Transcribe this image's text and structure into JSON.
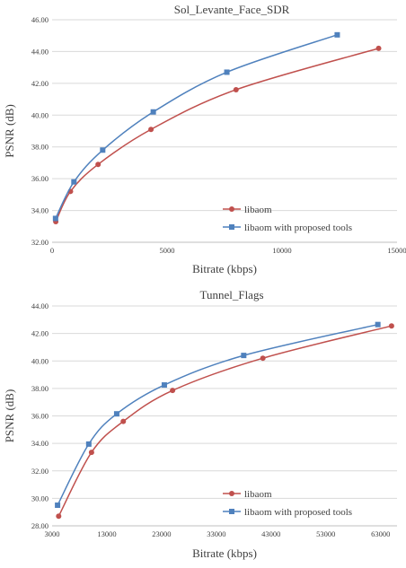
{
  "chart_data": [
    {
      "type": "line",
      "title": "Sol_Levante_Face_SDR",
      "xlabel": "Bitrate (kbps)",
      "ylabel": "PSNR (dB)",
      "xlim": [
        0,
        15000
      ],
      "ylim": [
        32,
        46
      ],
      "x_ticks": [
        0,
        5000,
        10000,
        15000
      ],
      "x_tick_labels": [
        "0",
        "5000",
        "10000",
        "15000"
      ],
      "y_ticks": [
        32,
        34,
        36,
        38,
        40,
        42,
        44,
        46
      ],
      "y_tick_labels": [
        "32.00",
        "34.00",
        "36.00",
        "38.00",
        "40.00",
        "42.00",
        "44.00",
        "46.00"
      ],
      "grid": "horizontal",
      "legend_position": "bottom-right",
      "series": [
        {
          "name": "libaom",
          "color": "#c0504d",
          "marker": "circle",
          "points": [
            [
              160,
              33.3
            ],
            [
              800,
              35.2
            ],
            [
              2000,
              36.9
            ],
            [
              4300,
              39.1
            ],
            [
              8000,
              41.6
            ],
            [
              14200,
              44.2
            ]
          ]
        },
        {
          "name": "libaom with proposed tools",
          "color": "#4f81bd",
          "marker": "square",
          "points": [
            [
              150,
              33.5
            ],
            [
              950,
              35.8
            ],
            [
              2200,
              37.8
            ],
            [
              4400,
              40.2
            ],
            [
              7600,
              42.7
            ],
            [
              12400,
              45.05
            ]
          ]
        }
      ]
    },
    {
      "type": "line",
      "title": "Tunnel_Flags",
      "xlabel": "Bitrate (kbps)",
      "ylabel": "PSNR (dB)",
      "xlim": [
        3000,
        66000
      ],
      "ylim": [
        28,
        44
      ],
      "x_ticks": [
        3000,
        13000,
        23000,
        33000,
        43000,
        53000,
        63000
      ],
      "x_tick_labels": [
        "3000",
        "13000",
        "23000",
        "33000",
        "43000",
        "53000",
        "63000"
      ],
      "y_ticks": [
        28,
        30,
        32,
        34,
        36,
        38,
        40,
        42,
        44
      ],
      "y_tick_labels": [
        "28.00",
        "30.00",
        "32.00",
        "34.00",
        "36.00",
        "38.00",
        "40.00",
        "42.00",
        "44.00"
      ],
      "grid": "horizontal",
      "legend_position": "bottom-right",
      "series": [
        {
          "name": "libaom",
          "color": "#c0504d",
          "marker": "circle",
          "points": [
            [
              4200,
              28.7
            ],
            [
              10200,
              33.35
            ],
            [
              16000,
              35.6
            ],
            [
              25000,
              37.85
            ],
            [
              41500,
              40.2
            ],
            [
              65000,
              42.55
            ]
          ]
        },
        {
          "name": "libaom with proposed tools",
          "color": "#4f81bd",
          "marker": "square",
          "points": [
            [
              4000,
              29.5
            ],
            [
              9700,
              33.95
            ],
            [
              14800,
              36.15
            ],
            [
              23500,
              38.25
            ],
            [
              38000,
              40.4
            ],
            [
              62500,
              42.65
            ]
          ]
        }
      ]
    }
  ]
}
